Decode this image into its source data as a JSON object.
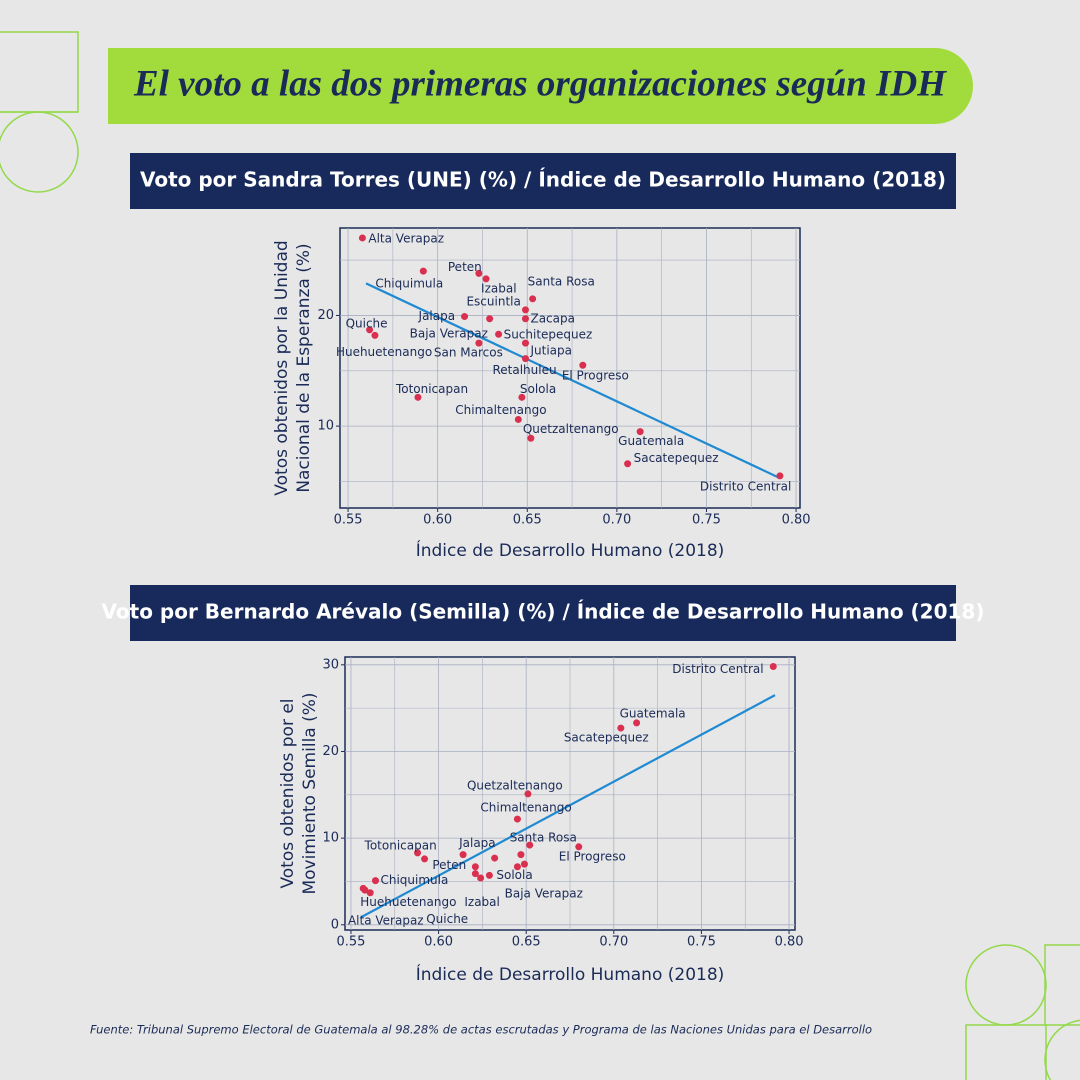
{
  "header": {
    "title": "El voto a las dos primeras organizaciones según IDH"
  },
  "chart_data": [
    {
      "type": "scatter",
      "title": "Voto por Sandra Torres (UNE) (%) / Índice de Desarrollo Humano (2018)",
      "xlabel": "Índice de Desarrollo Humano (2018)",
      "ylabel": [
        "Votos obtenidos por la Unidad",
        "Nacional de la Esperanza (%)"
      ],
      "labels": [
        "Alta Verapaz",
        "Chiquimula",
        "Peten",
        "Izabal",
        "Santa Rosa",
        "Escuintla",
        "Zacapa",
        "Jalapa",
        "Baja Verapaz",
        "Suchitepequez",
        "Quiche",
        "Huehuetenango",
        "San Marcos",
        "Jutiapa",
        "Retalhuleu",
        "El Progreso",
        "Totonicapan",
        "Solola",
        "Chimaltenango",
        "Quetzaltenango",
        "Guatemala",
        "Sacatepequez",
        "Distrito Central"
      ],
      "x": [
        0.558,
        0.592,
        0.623,
        0.627,
        0.653,
        0.649,
        0.649,
        0.615,
        0.629,
        0.634,
        0.562,
        0.565,
        0.623,
        0.649,
        0.649,
        0.681,
        0.589,
        0.647,
        0.645,
        0.652,
        0.713,
        0.706,
        0.791
      ],
      "values": [
        27.0,
        24.0,
        23.8,
        23.3,
        21.5,
        20.5,
        19.7,
        19.9,
        19.7,
        18.3,
        18.7,
        18.2,
        17.5,
        17.5,
        16.1,
        15.5,
        12.6,
        12.6,
        10.6,
        8.9,
        9.5,
        6.6,
        5.5
      ],
      "color": "#d9304f",
      "trendline": {
        "x": [
          0.56,
          0.791
        ],
        "values": [
          22.9,
          5.3
        ],
        "color": "#1f8ad2"
      },
      "xlim": [
        0.5455,
        0.8022
      ],
      "ylim": [
        2.6,
        27.9
      ],
      "xticks": [
        0.55,
        {
          "value": 0.6,
          "label": "0.60"
        },
        0.65,
        {
          "value": 0.7,
          "label": "0.70"
        },
        0.75,
        {
          "value": 0.8,
          "label": "0.80"
        }
      ],
      "yticks": [
        10,
        20
      ],
      "x_minor_ticks": [
        0.575,
        0.625,
        0.675,
        0.725,
        0.775
      ],
      "y_minor_ticks": [
        5,
        15,
        25
      ],
      "grid": true
    },
    {
      "type": "scatter",
      "title": "Voto por Bernardo Arévalo (Semilla) (%) / Índice de Desarrollo Humano (2018)",
      "xlabel": "Índice de Desarrollo Humano (2018)",
      "ylabel": [
        "Votos obtenidos por el",
        "Movimiento Semilla (%)"
      ],
      "labels": [
        "Distrito Central",
        "Guatemala",
        "Sacatepequez",
        "Quetzaltenango",
        "Chimaltenango",
        "Santa Rosa",
        "El Progreso",
        "Totonicapan",
        "Jalapa",
        "Peten",
        "Solola",
        "Baja Verapaz",
        "Izabal",
        "Chiquimula",
        "Huehuetenango",
        "Quiche",
        "Alta Verapaz",
        null,
        null,
        null,
        null,
        null
      ],
      "x": [
        0.791,
        0.713,
        0.704,
        0.651,
        0.645,
        0.652,
        0.68,
        0.588,
        0.614,
        0.621,
        0.629,
        0.624,
        0.621,
        0.564,
        0.561,
        0.557,
        0.558,
        0.592,
        0.632,
        0.647,
        0.649,
        0.645
      ],
      "values": [
        29.8,
        23.3,
        22.7,
        15.1,
        12.2,
        9.2,
        9.0,
        8.3,
        8.1,
        6.7,
        5.7,
        5.4,
        5.9,
        5.1,
        3.7,
        4.2,
        4.0,
        7.6,
        7.7,
        8.1,
        7.0,
        6.7
      ],
      "color": "#d9304f",
      "trendline": {
        "x": [
          0.556,
          0.792
        ],
        "values": [
          0.9,
          26.5
        ],
        "color": "#1f8ad2"
      },
      "xlim": [
        0.5466,
        0.8034
      ],
      "ylim": [
        -0.6,
        30.9
      ],
      "xticks": [
        0.55,
        {
          "value": 0.6,
          "label": "0.60"
        },
        0.65,
        {
          "value": 0.7,
          "label": "0.70"
        },
        0.75,
        {
          "value": 0.8,
          "label": "0.80"
        }
      ],
      "yticks": [
        0,
        10,
        20,
        30
      ],
      "x_minor_ticks": [
        0.575,
        0.625,
        0.675,
        0.725,
        0.775
      ],
      "y_minor_ticks": [
        5,
        15,
        25
      ],
      "grid": true
    }
  ],
  "footer": {
    "source": "Fuente: Tribunal Supremo Electoral de Guatemala al 98.28% de actas escrutadas y Programa de las Naciones Unidas para el Desarrollo"
  }
}
